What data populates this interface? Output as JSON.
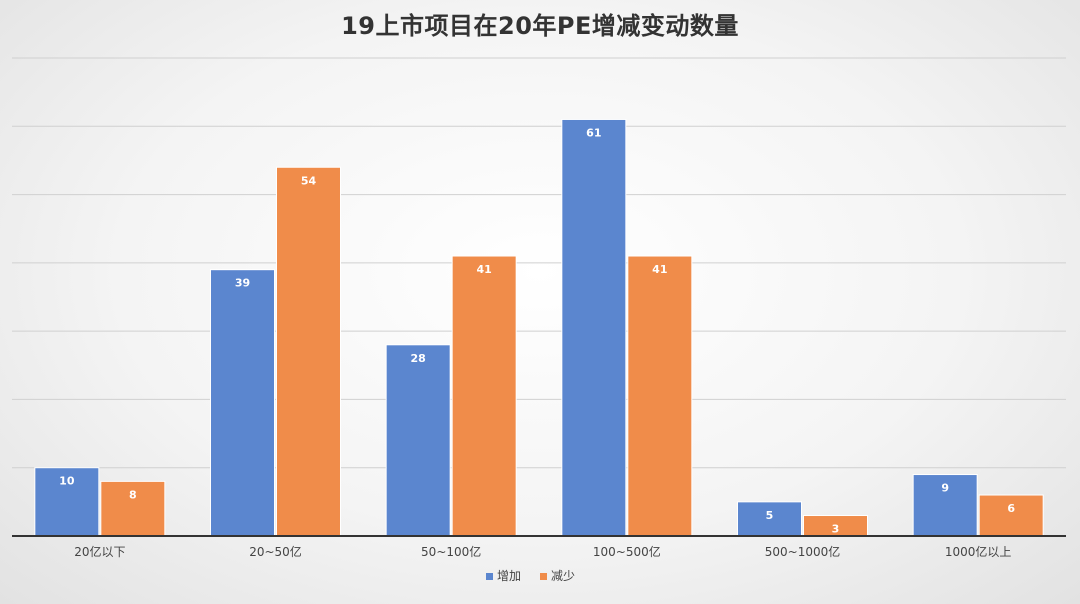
{
  "chart_data": {
    "type": "bar",
    "title": "19上市项目在20年PE增减变动数量",
    "categories": [
      "20亿以下",
      "20~50亿",
      "50~100亿",
      "100~500亿",
      "500~1000亿",
      "1000亿以上"
    ],
    "series": [
      {
        "name": "增加",
        "color": "#5b86cf",
        "values": [
          10,
          39,
          28,
          61,
          5,
          9
        ]
      },
      {
        "name": "减少",
        "color": "#f08c4a",
        "values": [
          8,
          54,
          41,
          41,
          3,
          6
        ]
      }
    ],
    "ylim": [
      0,
      70
    ],
    "grid": true,
    "legend": "bottom"
  }
}
